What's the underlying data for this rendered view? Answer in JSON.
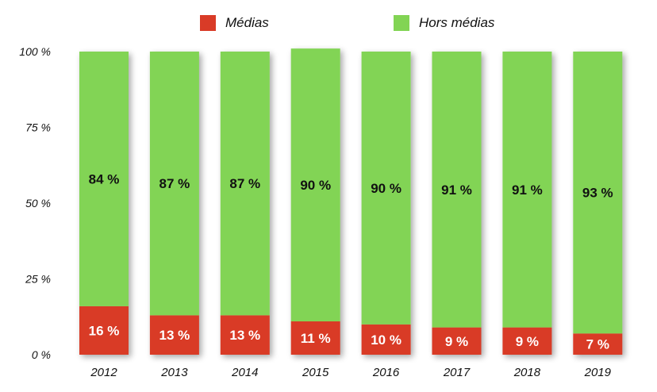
{
  "chart_data": {
    "type": "bar",
    "stacked": true,
    "percent": true,
    "categories": [
      "2012",
      "2013",
      "2014",
      "2015",
      "2016",
      "2017",
      "2018",
      "2019"
    ],
    "series": [
      {
        "name": "Médias",
        "color": "#d93b27",
        "values": [
          16,
          13,
          13,
          11,
          10,
          9,
          9,
          7
        ],
        "labels": [
          "16 %",
          "13 %",
          "13 %",
          "11 %",
          "10 %",
          "9 %",
          "9 %",
          "7 %"
        ]
      },
      {
        "name": "Hors médias",
        "color": "#82d454",
        "values": [
          84,
          87,
          87,
          90,
          90,
          91,
          91,
          93
        ],
        "labels": [
          "84 %",
          "87 %",
          "87 %",
          "90 %",
          "90 %",
          "91 %",
          "91 %",
          "93 %"
        ]
      }
    ],
    "ylim": [
      0,
      100
    ],
    "yticks": [
      0,
      25,
      50,
      75,
      100
    ],
    "ytick_labels": [
      "0 %",
      "25 %",
      "50 %",
      "75 %",
      "100 %"
    ],
    "legend_position": "top",
    "grid": false
  }
}
